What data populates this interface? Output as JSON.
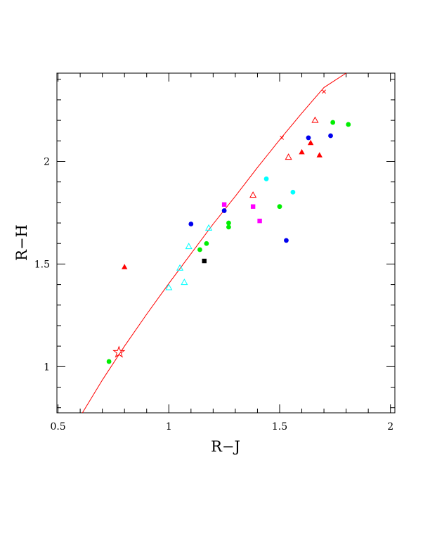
{
  "chart_data": {
    "type": "scatter",
    "xlabel": "R−J",
    "ylabel": "R−H",
    "xlim": [
      0.495,
      2.02
    ],
    "ylim": [
      0.775,
      2.43
    ],
    "xticks": [
      {
        "value": 0.5,
        "label": "0.5"
      },
      {
        "value": 1.0,
        "label": "1"
      },
      {
        "value": 1.5,
        "label": "1.5"
      },
      {
        "value": 2.0,
        "label": "2"
      }
    ],
    "yticks": [
      {
        "value": 1.0,
        "label": "1"
      },
      {
        "value": 1.5,
        "label": "1.5"
      },
      {
        "value": 2.0,
        "label": "2"
      }
    ],
    "x_minor_step": 0.1,
    "y_minor_step": 0.1,
    "colors": {
      "red": "#ff0000",
      "green": "#00ee00",
      "blue": "#0000ee",
      "cyan": "#00ffff",
      "magenta": "#ff00ff",
      "black": "#000000",
      "curve": "#ff0000"
    },
    "curve": {
      "x": [
        0.61,
        0.7,
        0.8,
        0.9,
        1.0,
        1.1,
        1.2,
        1.3,
        1.4,
        1.5,
        1.6,
        1.7,
        1.8
      ],
      "y": [
        0.775,
        0.935,
        1.1,
        1.255,
        1.405,
        1.55,
        1.695,
        1.83,
        1.97,
        2.105,
        2.235,
        2.36,
        2.43
      ]
    },
    "curve_markers": [
      {
        "x": 1.51,
        "y": 2.115
      },
      {
        "x": 1.7,
        "y": 2.34
      }
    ],
    "star": {
      "x": 0.775,
      "y": 1.07,
      "color": "#ff0000"
    },
    "series": [
      {
        "marker": "circle",
        "color": "#00ee00",
        "x": [
          0.73,
          1.14,
          1.17,
          1.27,
          1.27,
          1.5,
          1.74,
          1.81
        ],
        "y": [
          1.025,
          1.57,
          1.6,
          1.68,
          1.7,
          1.78,
          2.19,
          2.18
        ]
      },
      {
        "marker": "circle",
        "color": "#0000ee",
        "x": [
          1.1,
          1.25,
          1.53,
          1.63,
          1.73
        ],
        "y": [
          1.695,
          1.76,
          1.615,
          2.115,
          2.125
        ]
      },
      {
        "marker": "circle",
        "color": "#00ffff",
        "x": [
          1.44,
          1.56
        ],
        "y": [
          1.915,
          1.85
        ]
      },
      {
        "marker": "triangle-filled",
        "color": "#ff0000",
        "x": [
          0.8,
          1.6,
          1.64,
          1.68
        ],
        "y": [
          1.485,
          2.045,
          2.09,
          2.03
        ]
      },
      {
        "marker": "triangle-open",
        "color": "#ff0000",
        "x": [
          1.38,
          1.54,
          1.66
        ],
        "y": [
          1.835,
          2.02,
          2.2
        ]
      },
      {
        "marker": "triangle-open",
        "color": "#00ffff",
        "x": [
          1.0,
          1.05,
          1.07,
          1.09,
          1.18
        ],
        "y": [
          1.385,
          1.48,
          1.41,
          1.585,
          1.675
        ]
      },
      {
        "marker": "square",
        "color": "#ff00ff",
        "x": [
          1.25,
          1.38,
          1.41
        ],
        "y": [
          1.79,
          1.78,
          1.71
        ]
      },
      {
        "marker": "square",
        "color": "#000000",
        "x": [
          1.16
        ],
        "y": [
          1.515
        ]
      }
    ]
  }
}
